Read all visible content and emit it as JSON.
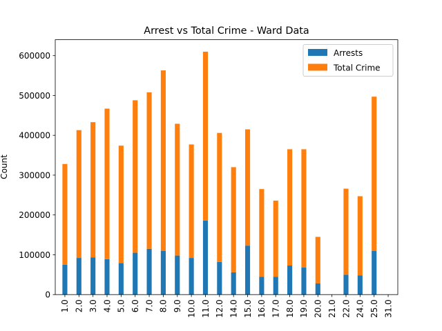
{
  "chart_data": {
    "type": "bar",
    "stacked": true,
    "title": "Arrest vs Total Crime - Ward Data",
    "xlabel": "",
    "ylabel": "Count",
    "ylim": [
      0,
      640000
    ],
    "yticks": [
      0,
      100000,
      200000,
      300000,
      400000,
      500000,
      600000
    ],
    "ytick_labels": [
      "0",
      "100000",
      "200000",
      "300000",
      "400000",
      "500000",
      "600000"
    ],
    "grid": false,
    "legend_position": "top-right",
    "categories": [
      "1.0",
      "2.0",
      "3.0",
      "4.0",
      "5.0",
      "6.0",
      "7.0",
      "8.0",
      "9.0",
      "10.0",
      "11.0",
      "12.0",
      "14.0",
      "15.0",
      "16.0",
      "17.0",
      "18.0",
      "19.0",
      "20.0",
      "21.0",
      "22.0",
      "24.0",
      "25.0",
      "31.0"
    ],
    "series": [
      {
        "name": "Arrests",
        "color": "#1f77b4",
        "values": [
          75000,
          92000,
          93000,
          89000,
          79000,
          105000,
          115000,
          110000,
          98000,
          92000,
          186000,
          82000,
          56000,
          123000,
          45000,
          45000,
          73000,
          68000,
          28000,
          0,
          50000,
          48000,
          110000,
          0
        ]
      },
      {
        "name": "Total Crime",
        "color": "#ff7f0e",
        "values": [
          253000,
          321000,
          340000,
          378000,
          295000,
          383000,
          393000,
          453000,
          331000,
          285000,
          424000,
          324000,
          264000,
          292000,
          220000,
          191000,
          292000,
          297000,
          117000,
          0,
          216000,
          199000,
          387000,
          0
        ]
      }
    ]
  }
}
